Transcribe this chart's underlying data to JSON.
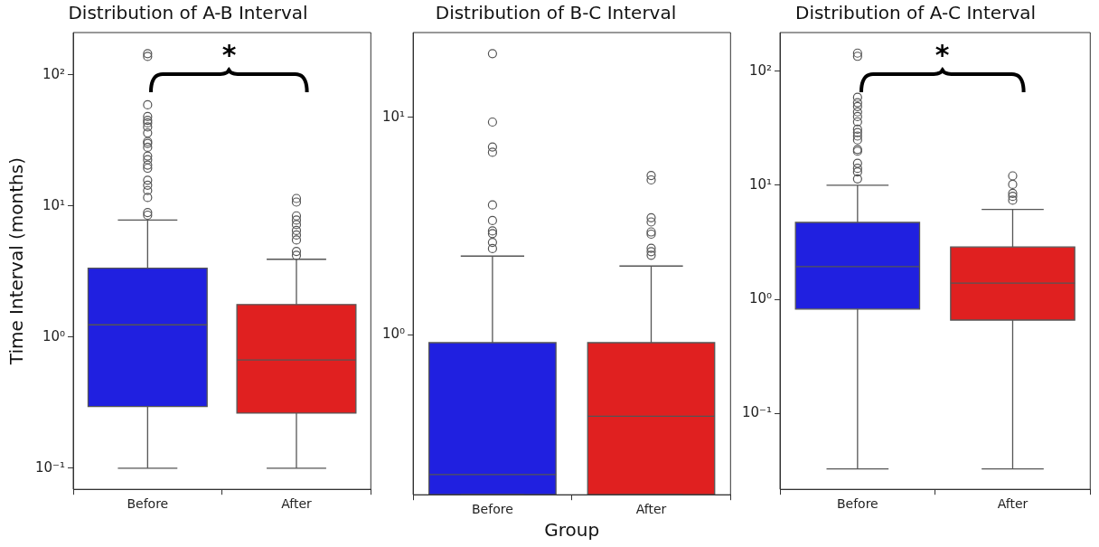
{
  "chart_data": [
    {
      "type": "box",
      "title": "Distribution of A-B Interval",
      "ylabel": "Time Interval (months)",
      "categories": [
        "Before",
        "After"
      ],
      "colors": [
        "#2020e0",
        "#e02020"
      ],
      "log": "y",
      "ylim": [
        0.069,
        210
      ],
      "yticks": [
        {
          "value": 0.1,
          "label": "10⁻¹"
        },
        {
          "value": 1,
          "label": "10⁰"
        },
        {
          "value": 10,
          "label": "10¹"
        },
        {
          "value": 100,
          "label": "10²"
        }
      ],
      "annotations": [
        "*"
      ],
      "boxes": [
        {
          "low": 0.1,
          "q1": 0.295,
          "median": 1.24,
          "q3": 3.35,
          "high": 7.8,
          "outliers": [
            145,
            138,
            59,
            48,
            45,
            43,
            40,
            36,
            31,
            30,
            28,
            24,
            22.5,
            20.5,
            19.4,
            15.7,
            14.4,
            13.1,
            11.6,
            8.9,
            8.5
          ]
        },
        {
          "low": 0.1,
          "q1": 0.263,
          "median": 0.668,
          "q3": 1.77,
          "high": 3.92,
          "outliers": [
            11.4,
            10.7,
            8.4,
            7.8,
            7.2,
            6.5,
            6.0,
            5.5,
            4.5,
            4.2
          ]
        }
      ]
    },
    {
      "type": "box",
      "title": "Distribution of B-C Interval",
      "xlabel": "Group",
      "categories": [
        "Before",
        "After"
      ],
      "colors": [
        "#2020e0",
        "#e02020"
      ],
      "log": "y",
      "ylim": [
        0.184,
        24.5
      ],
      "yticks": [
        {
          "value": 1,
          "label": "10⁰"
        },
        {
          "value": 10,
          "label": "10¹"
        }
      ],
      "boxes": [
        {
          "low": 0.184,
          "q1": 0.184,
          "median": 0.228,
          "q3": 0.92,
          "high": 2.3,
          "outliers": [
            19.6,
            9.5,
            7.3,
            6.9,
            3.95,
            3.35,
            3.0,
            2.92,
            2.66,
            2.49
          ]
        },
        {
          "low": 0.184,
          "q1": 0.184,
          "median": 0.422,
          "q3": 0.92,
          "high": 2.07,
          "outliers": [
            5.4,
            5.15,
            3.45,
            3.3,
            2.97,
            2.9,
            2.5,
            2.41,
            2.32
          ]
        }
      ]
    },
    {
      "type": "box",
      "title": "Distribution of A-C Interval",
      "categories": [
        "Before",
        "After"
      ],
      "colors": [
        "#2020e0",
        "#e02020"
      ],
      "log": "y",
      "ylim": [
        0.0217,
        218
      ],
      "yticks": [
        {
          "value": 0.1,
          "label": "10⁻¹"
        },
        {
          "value": 1,
          "label": "10⁰"
        },
        {
          "value": 10,
          "label": "10¹"
        },
        {
          "value": 100,
          "label": "10²"
        }
      ],
      "annotations": [
        "*"
      ],
      "boxes": [
        {
          "low": 0.0327,
          "q1": 0.824,
          "median": 1.94,
          "q3": 4.73,
          "high": 10,
          "outliers": [
            144,
            135,
            59,
            53,
            49,
            44,
            40,
            36,
            31,
            29,
            27,
            25,
            20.6,
            19.9,
            15.6,
            14.1,
            13.1,
            11.4
          ]
        },
        {
          "low": 0.0327,
          "q1": 0.66,
          "median": 1.39,
          "q3": 2.88,
          "high": 6.15,
          "outliers": [
            12.1,
            10.2,
            8.5,
            8.0,
            7.4
          ]
        }
      ]
    }
  ]
}
